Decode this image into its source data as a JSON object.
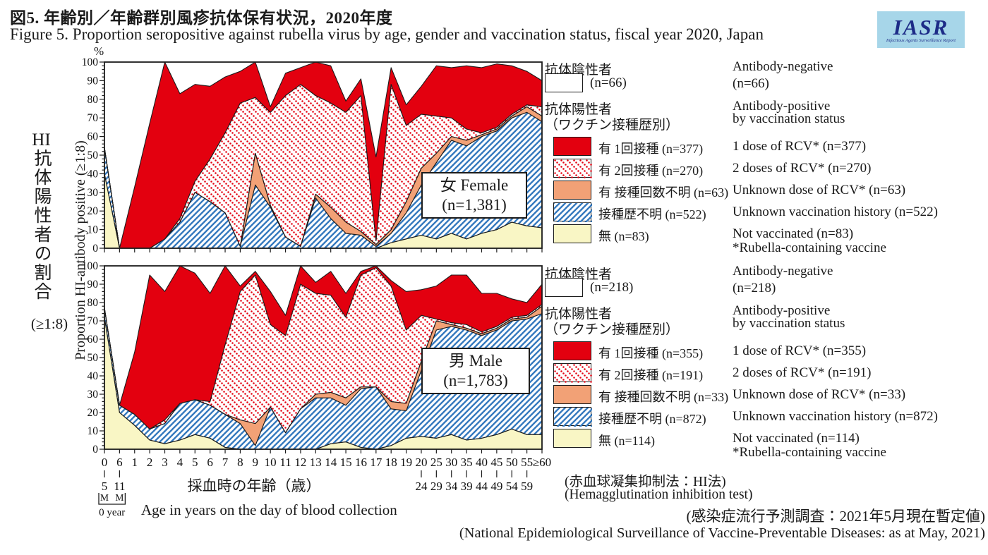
{
  "header": {
    "title_jp": "図5. 年齢別／年齢群別風疹抗体保有状況，2020年度",
    "title_en": "Figure 5. Proportion seropositive against rubella virus by age, gender and vaccination status, fiscal year 2020, Japan",
    "logo_text": "IASR",
    "logo_caption": "Infectious Agents Surveillance Report"
  },
  "axes": {
    "percent": "%",
    "y_jp_prefix": "HI",
    "y_jp": "抗体陽性者の割合",
    "y_paren": "(≥1:8)",
    "y_en": "Proportion HI-antibody positive (≥1:8)",
    "x_jp": "採血時の年齢（歳）",
    "x_en": "Age in years on the day of blood collection",
    "zero_year": "0 year",
    "y_ticks": [
      0,
      10,
      20,
      30,
      40,
      50,
      60,
      70,
      80,
      90,
      100
    ]
  },
  "panels": [
    {
      "label": "女 Female",
      "n": "(n=1,381)"
    },
    {
      "label": "男 Male",
      "n": "(n=1,783)"
    }
  ],
  "colors": {
    "red": "#e3000f",
    "salmon": "#f2a176",
    "yellow": "#f9f6c5",
    "blue_hatch": "#3579be",
    "red_dot": "#e3000f",
    "axis": "#1c1c1c",
    "logo_bg": "#a7d6e9",
    "logo_text": "#1d2b87"
  },
  "legend_female": {
    "negative_header": "抗体陰性者",
    "negative_n": "(n=66)",
    "positive_header1": "抗体陽性者",
    "positive_header2": "（ワクチン接種歴別）",
    "items": [
      {
        "label": "有 1回接種",
        "n": "(n=377)"
      },
      {
        "label": "有 2回接種",
        "n": "(n=270)"
      },
      {
        "label": "有 接種回数不明",
        "n": "(n=63)"
      },
      {
        "label": "接種歴不明",
        "n": "(n=522)"
      },
      {
        "label": "無",
        "n": "(n=83)"
      }
    ],
    "en": {
      "negative_header": "Antibody-negative",
      "negative_n": "(n=66)",
      "positive_header1": "Antibody-positive",
      "positive_header2": "by vaccination status",
      "items": [
        "1 dose of RCV* (n=377)",
        "2 doses of RCV* (n=270)",
        "Unknown dose of RCV* (n=63)",
        "Unknown vaccination history (n=522)",
        "Not vaccinated (n=83)"
      ],
      "footnote": "*Rubella-containing vaccine"
    }
  },
  "legend_male": {
    "negative_header": "抗体陰性者",
    "negative_n": "(n=218)",
    "positive_header1": "抗体陽性者",
    "positive_header2": "（ワクチン接種歴別）",
    "items": [
      {
        "label": "有 1回接種",
        "n": "(n=355)"
      },
      {
        "label": "有 2回接種",
        "n": "(n=191)"
      },
      {
        "label": "有 接種回数不明",
        "n": "(n=33)"
      },
      {
        "label": "接種歴不明",
        "n": "(n=872)"
      },
      {
        "label": "無",
        "n": "(n=114)"
      }
    ],
    "en": {
      "negative_header": "Antibody-negative",
      "negative_n": "(n=218)",
      "positive_header1": "Antibody-positive",
      "positive_header2": "by vaccination status",
      "items": [
        "1 dose of RCV* (n=355)",
        "2 doses of RCV* (n=191)",
        "Unknown dose of RCV* (n=33)",
        "Unknown vaccination history (n=872)",
        "Not vaccinated (n=114)"
      ],
      "footnote": "*Rubella-containing vaccine"
    }
  },
  "footnotes": {
    "hi_jp": "(赤血球凝集抑制法：HI法)",
    "hi_en": "(Hemagglutination inhibition test)",
    "survey_jp": "(感染症流行予測調査：2021年5月現在暫定値)",
    "survey_en": "(National Epidemiological Surveillance of Vaccine-Preventable Diseases: as at May, 2021)"
  },
  "chart_data": [
    {
      "type": "area",
      "stacked": true,
      "title": "女 Female (n=1,381)",
      "ylim": [
        0,
        100
      ],
      "ylabel": "Proportion HI-antibody positive (≥1:8)",
      "xlabel": "Age in years on the day of blood collection",
      "legend_position": "right",
      "grid": false,
      "categories": [
        {
          "l": "0",
          "s1": "5",
          "s2": "M"
        },
        {
          "l": "6",
          "s1": "11",
          "s2": "M"
        },
        {
          "l": "1"
        },
        {
          "l": "2"
        },
        {
          "l": "3"
        },
        {
          "l": "4"
        },
        {
          "l": "5"
        },
        {
          "l": "6"
        },
        {
          "l": "7"
        },
        {
          "l": "8"
        },
        {
          "l": "9"
        },
        {
          "l": "10"
        },
        {
          "l": "11"
        },
        {
          "l": "12"
        },
        {
          "l": "13"
        },
        {
          "l": "14"
        },
        {
          "l": "15"
        },
        {
          "l": "16"
        },
        {
          "l": "17"
        },
        {
          "l": "18"
        },
        {
          "l": "19"
        },
        {
          "l": "20",
          "s1": "24"
        },
        {
          "l": "25",
          "s1": "29"
        },
        {
          "l": "30",
          "s1": "34"
        },
        {
          "l": "35",
          "s1": "39"
        },
        {
          "l": "40",
          "s1": "44"
        },
        {
          "l": "45",
          "s1": "49"
        },
        {
          "l": "50",
          "s1": "54"
        },
        {
          "l": "55",
          "s1": "59"
        },
        {
          "l": "≥60"
        }
      ],
      "series": [
        {
          "key": "not_vaccinated",
          "name": "無 Not vaccinated",
          "style": "yellow",
          "values": [
            40,
            0,
            0,
            0,
            0,
            0,
            0,
            0,
            0,
            0,
            0,
            0,
            0,
            0,
            0,
            0,
            0,
            0,
            0,
            3,
            5,
            7,
            5,
            8,
            5,
            8,
            10,
            14,
            12,
            11
          ]
        },
        {
          "key": "unknown_history",
          "name": "接種歴不明 Unknown vaccination history",
          "style": "bluehatch",
          "values": [
            14,
            0,
            0,
            0,
            5,
            14,
            30,
            25,
            19,
            1,
            34,
            22,
            6,
            1,
            27,
            16,
            8,
            7,
            1,
            5,
            14,
            27,
            41,
            50,
            50,
            52,
            53,
            56,
            61,
            57
          ]
        },
        {
          "key": "unknown_dose",
          "name": "有 接種回数不明 Unknown dose of RCV",
          "style": "salmon",
          "values": [
            0,
            0,
            0,
            0,
            0,
            0,
            0,
            0,
            0,
            0,
            17,
            1,
            0,
            0,
            2,
            6,
            6,
            2,
            1,
            2,
            6,
            9,
            5,
            2,
            3,
            1,
            1,
            1,
            3,
            3
          ]
        },
        {
          "key": "two_doses",
          "name": "有 2回接種 2 doses of RCV",
          "style": "redhatch",
          "values": [
            0,
            0,
            0,
            0,
            0,
            2,
            6,
            23,
            43,
            77,
            30,
            50,
            76,
            87,
            53,
            56,
            59,
            73,
            2,
            78,
            41,
            29,
            20,
            10,
            6,
            1,
            1,
            1,
            1,
            5
          ]
        },
        {
          "key": "one_dose",
          "name": "有 1回接種 1 dose of RCV",
          "style": "red",
          "values": [
            0,
            0,
            33,
            67,
            95,
            67,
            52,
            39,
            30,
            17,
            19,
            3,
            12,
            9,
            18,
            20,
            6,
            9,
            45,
            9,
            11,
            15,
            27,
            27,
            34,
            35,
            34,
            26,
            18,
            14
          ]
        }
      ]
    },
    {
      "type": "area",
      "stacked": true,
      "title": "男 Male (n=1,783)",
      "ylim": [
        0,
        100
      ],
      "ylabel": "Proportion HI-antibody positive (≥1:8)",
      "xlabel": "Age in years on the day of blood collection",
      "legend_position": "right",
      "grid": false,
      "categories": [
        {
          "l": "0",
          "s1": "5",
          "s2": "M"
        },
        {
          "l": "6",
          "s1": "11",
          "s2": "M"
        },
        {
          "l": "1"
        },
        {
          "l": "2"
        },
        {
          "l": "3"
        },
        {
          "l": "4"
        },
        {
          "l": "5"
        },
        {
          "l": "6"
        },
        {
          "l": "7"
        },
        {
          "l": "8"
        },
        {
          "l": "9"
        },
        {
          "l": "10"
        },
        {
          "l": "11"
        },
        {
          "l": "12"
        },
        {
          "l": "13"
        },
        {
          "l": "14"
        },
        {
          "l": "15"
        },
        {
          "l": "16"
        },
        {
          "l": "17"
        },
        {
          "l": "18"
        },
        {
          "l": "19"
        },
        {
          "l": "20",
          "s1": "24"
        },
        {
          "l": "25",
          "s1": "29"
        },
        {
          "l": "30",
          "s1": "34"
        },
        {
          "l": "35",
          "s1": "39"
        },
        {
          "l": "40",
          "s1": "44"
        },
        {
          "l": "45",
          "s1": "49"
        },
        {
          "l": "50",
          "s1": "54"
        },
        {
          "l": "55",
          "s1": "59"
        },
        {
          "l": "≥60"
        }
      ],
      "series": [
        {
          "key": "not_vaccinated",
          "name": "無 Not vaccinated",
          "style": "yellow",
          "values": [
            72,
            20,
            13,
            5,
            3,
            5,
            8,
            6,
            1,
            0,
            0,
            0,
            0,
            0,
            0,
            3,
            4,
            1,
            0,
            2,
            6,
            7,
            6,
            8,
            5,
            6,
            8,
            11,
            8,
            8
          ]
        },
        {
          "key": "unknown_history",
          "name": "接種歴不明 Unknown vaccination history",
          "style": "bluehatch",
          "values": [
            5,
            4,
            6,
            6,
            11,
            20,
            19,
            18,
            18,
            14,
            2,
            23,
            9,
            22,
            28,
            25,
            20,
            32,
            34,
            20,
            15,
            36,
            59,
            59,
            60,
            56,
            57,
            59,
            63,
            66
          ]
        },
        {
          "key": "unknown_dose",
          "name": "有 接種回数不明 Unknown dose of RCV",
          "style": "salmon",
          "values": [
            0,
            0,
            0,
            0,
            0,
            0,
            0,
            0,
            0,
            2,
            12,
            0,
            0,
            0,
            2,
            3,
            4,
            1,
            0,
            4,
            4,
            5,
            5,
            1,
            1,
            1,
            1,
            1,
            1,
            4
          ]
        },
        {
          "key": "two_doses",
          "name": "有 2回接種 2 doses of RCV",
          "style": "redhatch",
          "values": [
            0,
            0,
            0,
            0,
            2,
            0,
            0,
            2,
            38,
            70,
            81,
            45,
            53,
            68,
            55,
            53,
            44,
            61,
            65,
            63,
            40,
            25,
            1,
            1,
            2,
            1,
            1,
            1,
            1,
            1
          ]
        },
        {
          "key": "one_dose",
          "name": "有 1回接種 1 dose of RCV",
          "style": "red",
          "values": [
            0,
            0,
            34,
            84,
            70,
            75,
            69,
            59,
            43,
            3,
            2,
            18,
            11,
            10,
            6,
            13,
            13,
            2,
            1,
            3,
            21,
            14,
            18,
            26,
            27,
            21,
            18,
            10,
            7,
            11
          ]
        }
      ]
    }
  ]
}
